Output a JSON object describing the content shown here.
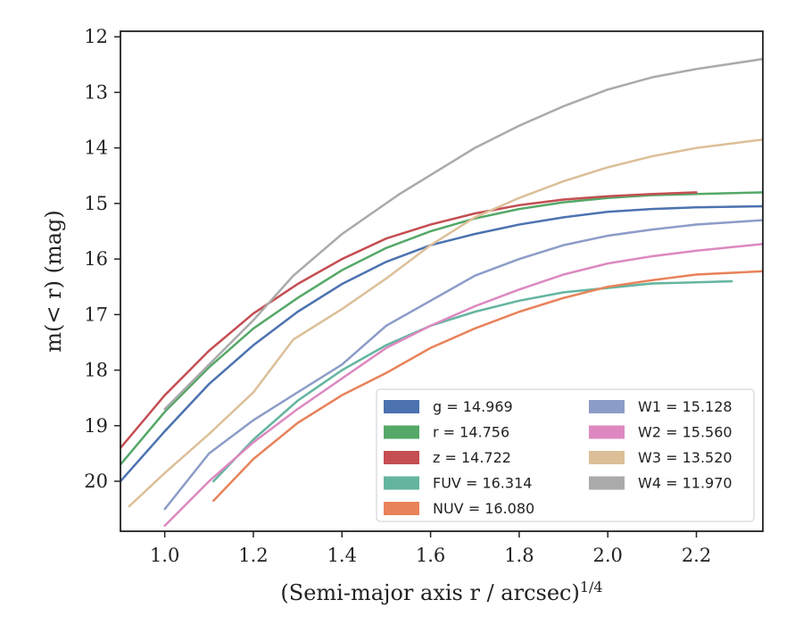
{
  "chart_data": {
    "type": "line",
    "xlabel": "(Semi-major axis r / arcsec)",
    "xlabel_sup": "1/4",
    "ylabel": "m(< r) (mag)",
    "xlim": [
      0.9,
      2.35
    ],
    "ylim": [
      20.9,
      11.9
    ],
    "y_inverted": true,
    "grid": false,
    "legend_placement": "lower-right",
    "x_ticks": [
      "1.0",
      "1.2",
      "1.4",
      "1.6",
      "1.8",
      "2.0",
      "2.2"
    ],
    "y_ticks": [
      "12",
      "13",
      "14",
      "15",
      "16",
      "17",
      "18",
      "19",
      "20"
    ],
    "series": [
      {
        "name": "g = 14.969",
        "color": "#4c72b0",
        "faint_segments": [],
        "points": [
          [
            0.9,
            20.0
          ],
          [
            1.0,
            19.1
          ],
          [
            1.1,
            18.25
          ],
          [
            1.2,
            17.55
          ],
          [
            1.3,
            16.95
          ],
          [
            1.4,
            16.45
          ],
          [
            1.5,
            16.05
          ],
          [
            1.6,
            15.75
          ],
          [
            1.7,
            15.55
          ],
          [
            1.8,
            15.38
          ],
          [
            1.9,
            15.25
          ],
          [
            2.0,
            15.15
          ],
          [
            2.1,
            15.1
          ],
          [
            2.2,
            15.07
          ],
          [
            2.35,
            15.05
          ]
        ]
      },
      {
        "name": "r = 14.756",
        "color": "#55a868",
        "points": [
          [
            0.9,
            19.7
          ],
          [
            1.0,
            18.75
          ],
          [
            1.1,
            17.95
          ],
          [
            1.2,
            17.25
          ],
          [
            1.3,
            16.7
          ],
          [
            1.4,
            16.2
          ],
          [
            1.5,
            15.8
          ],
          [
            1.6,
            15.5
          ],
          [
            1.7,
            15.27
          ],
          [
            1.8,
            15.1
          ],
          [
            1.9,
            14.98
          ],
          [
            2.0,
            14.9
          ],
          [
            2.1,
            14.85
          ],
          [
            2.2,
            14.83
          ],
          [
            2.35,
            14.8
          ]
        ]
      },
      {
        "name": "z = 14.722",
        "color": "#c44e52",
        "points": [
          [
            0.9,
            19.4
          ],
          [
            1.0,
            18.45
          ],
          [
            1.1,
            17.65
          ],
          [
            1.2,
            16.98
          ],
          [
            1.3,
            16.45
          ],
          [
            1.4,
            16.0
          ],
          [
            1.5,
            15.63
          ],
          [
            1.6,
            15.38
          ],
          [
            1.7,
            15.18
          ],
          [
            1.8,
            15.03
          ],
          [
            1.9,
            14.93
          ],
          [
            2.0,
            14.87
          ],
          [
            2.1,
            14.83
          ],
          [
            2.2,
            14.8
          ]
        ]
      },
      {
        "name": "FUV = 16.314",
        "color": "#64b5a0",
        "points": [
          [
            1.11,
            20.0
          ],
          [
            1.2,
            19.25
          ],
          [
            1.3,
            18.55
          ],
          [
            1.4,
            18.0
          ],
          [
            1.5,
            17.55
          ],
          [
            1.6,
            17.2
          ],
          [
            1.7,
            16.95
          ],
          [
            1.8,
            16.75
          ],
          [
            1.9,
            16.6
          ],
          [
            2.0,
            16.52
          ],
          [
            2.1,
            16.44
          ],
          [
            2.2,
            16.42
          ],
          [
            2.28,
            16.4
          ]
        ]
      },
      {
        "name": "NUV = 16.080",
        "color": "#e8825a",
        "points": [
          [
            1.11,
            20.35
          ],
          [
            1.2,
            19.6
          ],
          [
            1.3,
            18.95
          ],
          [
            1.4,
            18.45
          ],
          [
            1.5,
            18.05
          ],
          [
            1.6,
            17.6
          ],
          [
            1.7,
            17.25
          ],
          [
            1.8,
            16.95
          ],
          [
            1.9,
            16.7
          ],
          [
            2.0,
            16.5
          ],
          [
            2.1,
            16.38
          ],
          [
            2.2,
            16.28
          ],
          [
            2.35,
            16.22
          ]
        ]
      },
      {
        "name": "W1 = 15.128",
        "color": "#8c9cc8",
        "points": [
          [
            1.0,
            20.5
          ],
          [
            1.1,
            19.5
          ],
          [
            1.2,
            18.9
          ],
          [
            1.3,
            18.4
          ],
          [
            1.4,
            17.9
          ],
          [
            1.5,
            17.2
          ],
          [
            1.6,
            16.75
          ],
          [
            1.7,
            16.3
          ],
          [
            1.8,
            16.0
          ],
          [
            1.9,
            15.75
          ],
          [
            2.0,
            15.58
          ],
          [
            2.1,
            15.47
          ],
          [
            2.2,
            15.38
          ],
          [
            2.35,
            15.3
          ]
        ]
      },
      {
        "name": "W2 = 15.560",
        "color": "#dd88c0",
        "points": [
          [
            1.0,
            20.8
          ],
          [
            1.1,
            20.0
          ],
          [
            1.2,
            19.3
          ],
          [
            1.3,
            18.7
          ],
          [
            1.4,
            18.15
          ],
          [
            1.5,
            17.6
          ],
          [
            1.6,
            17.2
          ],
          [
            1.7,
            16.85
          ],
          [
            1.8,
            16.55
          ],
          [
            1.9,
            16.28
          ],
          [
            2.0,
            16.08
          ],
          [
            2.1,
            15.95
          ],
          [
            2.2,
            15.85
          ],
          [
            2.35,
            15.73
          ]
        ]
      },
      {
        "name": "W3 = 13.520",
        "color": "#dcbf98",
        "points": [
          [
            0.92,
            20.45
          ],
          [
            1.0,
            19.85
          ],
          [
            1.1,
            19.15
          ],
          [
            1.2,
            18.4
          ],
          [
            1.29,
            17.45
          ],
          [
            1.4,
            16.9
          ],
          [
            1.5,
            16.35
          ],
          [
            1.6,
            15.75
          ],
          [
            1.7,
            15.25
          ],
          [
            1.8,
            14.9
          ],
          [
            1.9,
            14.6
          ],
          [
            2.0,
            14.35
          ],
          [
            2.1,
            14.15
          ],
          [
            2.2,
            14.0
          ],
          [
            2.35,
            13.85
          ]
        ]
      },
      {
        "name": "W4 = 11.970",
        "color": "#aaaaaa",
        "points": [
          [
            1.0,
            18.7
          ],
          [
            1.1,
            17.9
          ],
          [
            1.2,
            17.1
          ],
          [
            1.29,
            16.3
          ],
          [
            1.4,
            15.55
          ],
          [
            1.53,
            14.83
          ],
          [
            1.7,
            14.0
          ],
          [
            1.8,
            13.6
          ],
          [
            1.9,
            13.25
          ],
          [
            2.0,
            12.95
          ],
          [
            2.1,
            12.73
          ],
          [
            2.2,
            12.58
          ],
          [
            2.35,
            12.4
          ]
        ]
      }
    ]
  }
}
